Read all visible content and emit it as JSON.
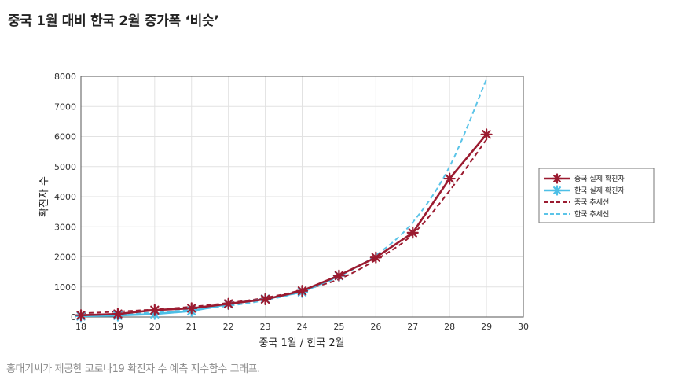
{
  "headline": "중국 1월 대비 한국 2월 증가폭 ‘비슷’",
  "caption": "홍대기씨가 제공한 코로나19 확진자 수 예측 지수함수 그래프.",
  "chart_data": {
    "type": "line",
    "title": "",
    "xlabel": "중국 1월 / 한국 2월",
    "ylabel": "확진자 수",
    "xlim": [
      18,
      30
    ],
    "ylim": [
      0,
      8000
    ],
    "xticks": [
      18,
      19,
      20,
      21,
      22,
      23,
      24,
      25,
      26,
      27,
      28,
      29,
      30
    ],
    "yticks": [
      0,
      1000,
      2000,
      3000,
      4000,
      5000,
      6000,
      7000,
      8000
    ],
    "grid": true,
    "legend_position": "right",
    "series": [
      {
        "name": "중국 실제 확진자",
        "style": "solid",
        "marker": "star",
        "color": "#9b1b30",
        "x": [
          18,
          19,
          20,
          21,
          22,
          23,
          24,
          25,
          26,
          27,
          28,
          29
        ],
        "y": [
          60,
          100,
          230,
          290,
          440,
          590,
          870,
          1380,
          1980,
          2800,
          4600,
          6070
        ]
      },
      {
        "name": "한국 실제 확진자",
        "style": "solid",
        "marker": "star",
        "color": "#4dbfe6",
        "x": [
          18,
          19,
          20,
          21,
          22,
          23,
          24,
          25
        ],
        "y": [
          30,
          50,
          100,
          200,
          430,
          600,
          830,
          1370
        ]
      },
      {
        "name": "중국 추세선",
        "style": "dashed",
        "marker": "none",
        "color": "#9b1b30",
        "x": [
          18,
          19,
          20,
          21,
          22,
          23,
          24,
          25,
          26,
          27,
          28,
          29
        ],
        "y": [
          120,
          180,
          250,
          340,
          470,
          640,
          900,
          1260,
          1900,
          2750,
          4200,
          5900
        ]
      },
      {
        "name": "한국 추세선",
        "style": "dashed",
        "marker": "none",
        "color": "#5bc4e8",
        "x": [
          18,
          19,
          20,
          21,
          22,
          23,
          24,
          25,
          26,
          27,
          28,
          29
        ],
        "y": [
          50,
          90,
          150,
          240,
          370,
          560,
          850,
          1350,
          2050,
          3150,
          5000,
          7900
        ]
      }
    ]
  }
}
